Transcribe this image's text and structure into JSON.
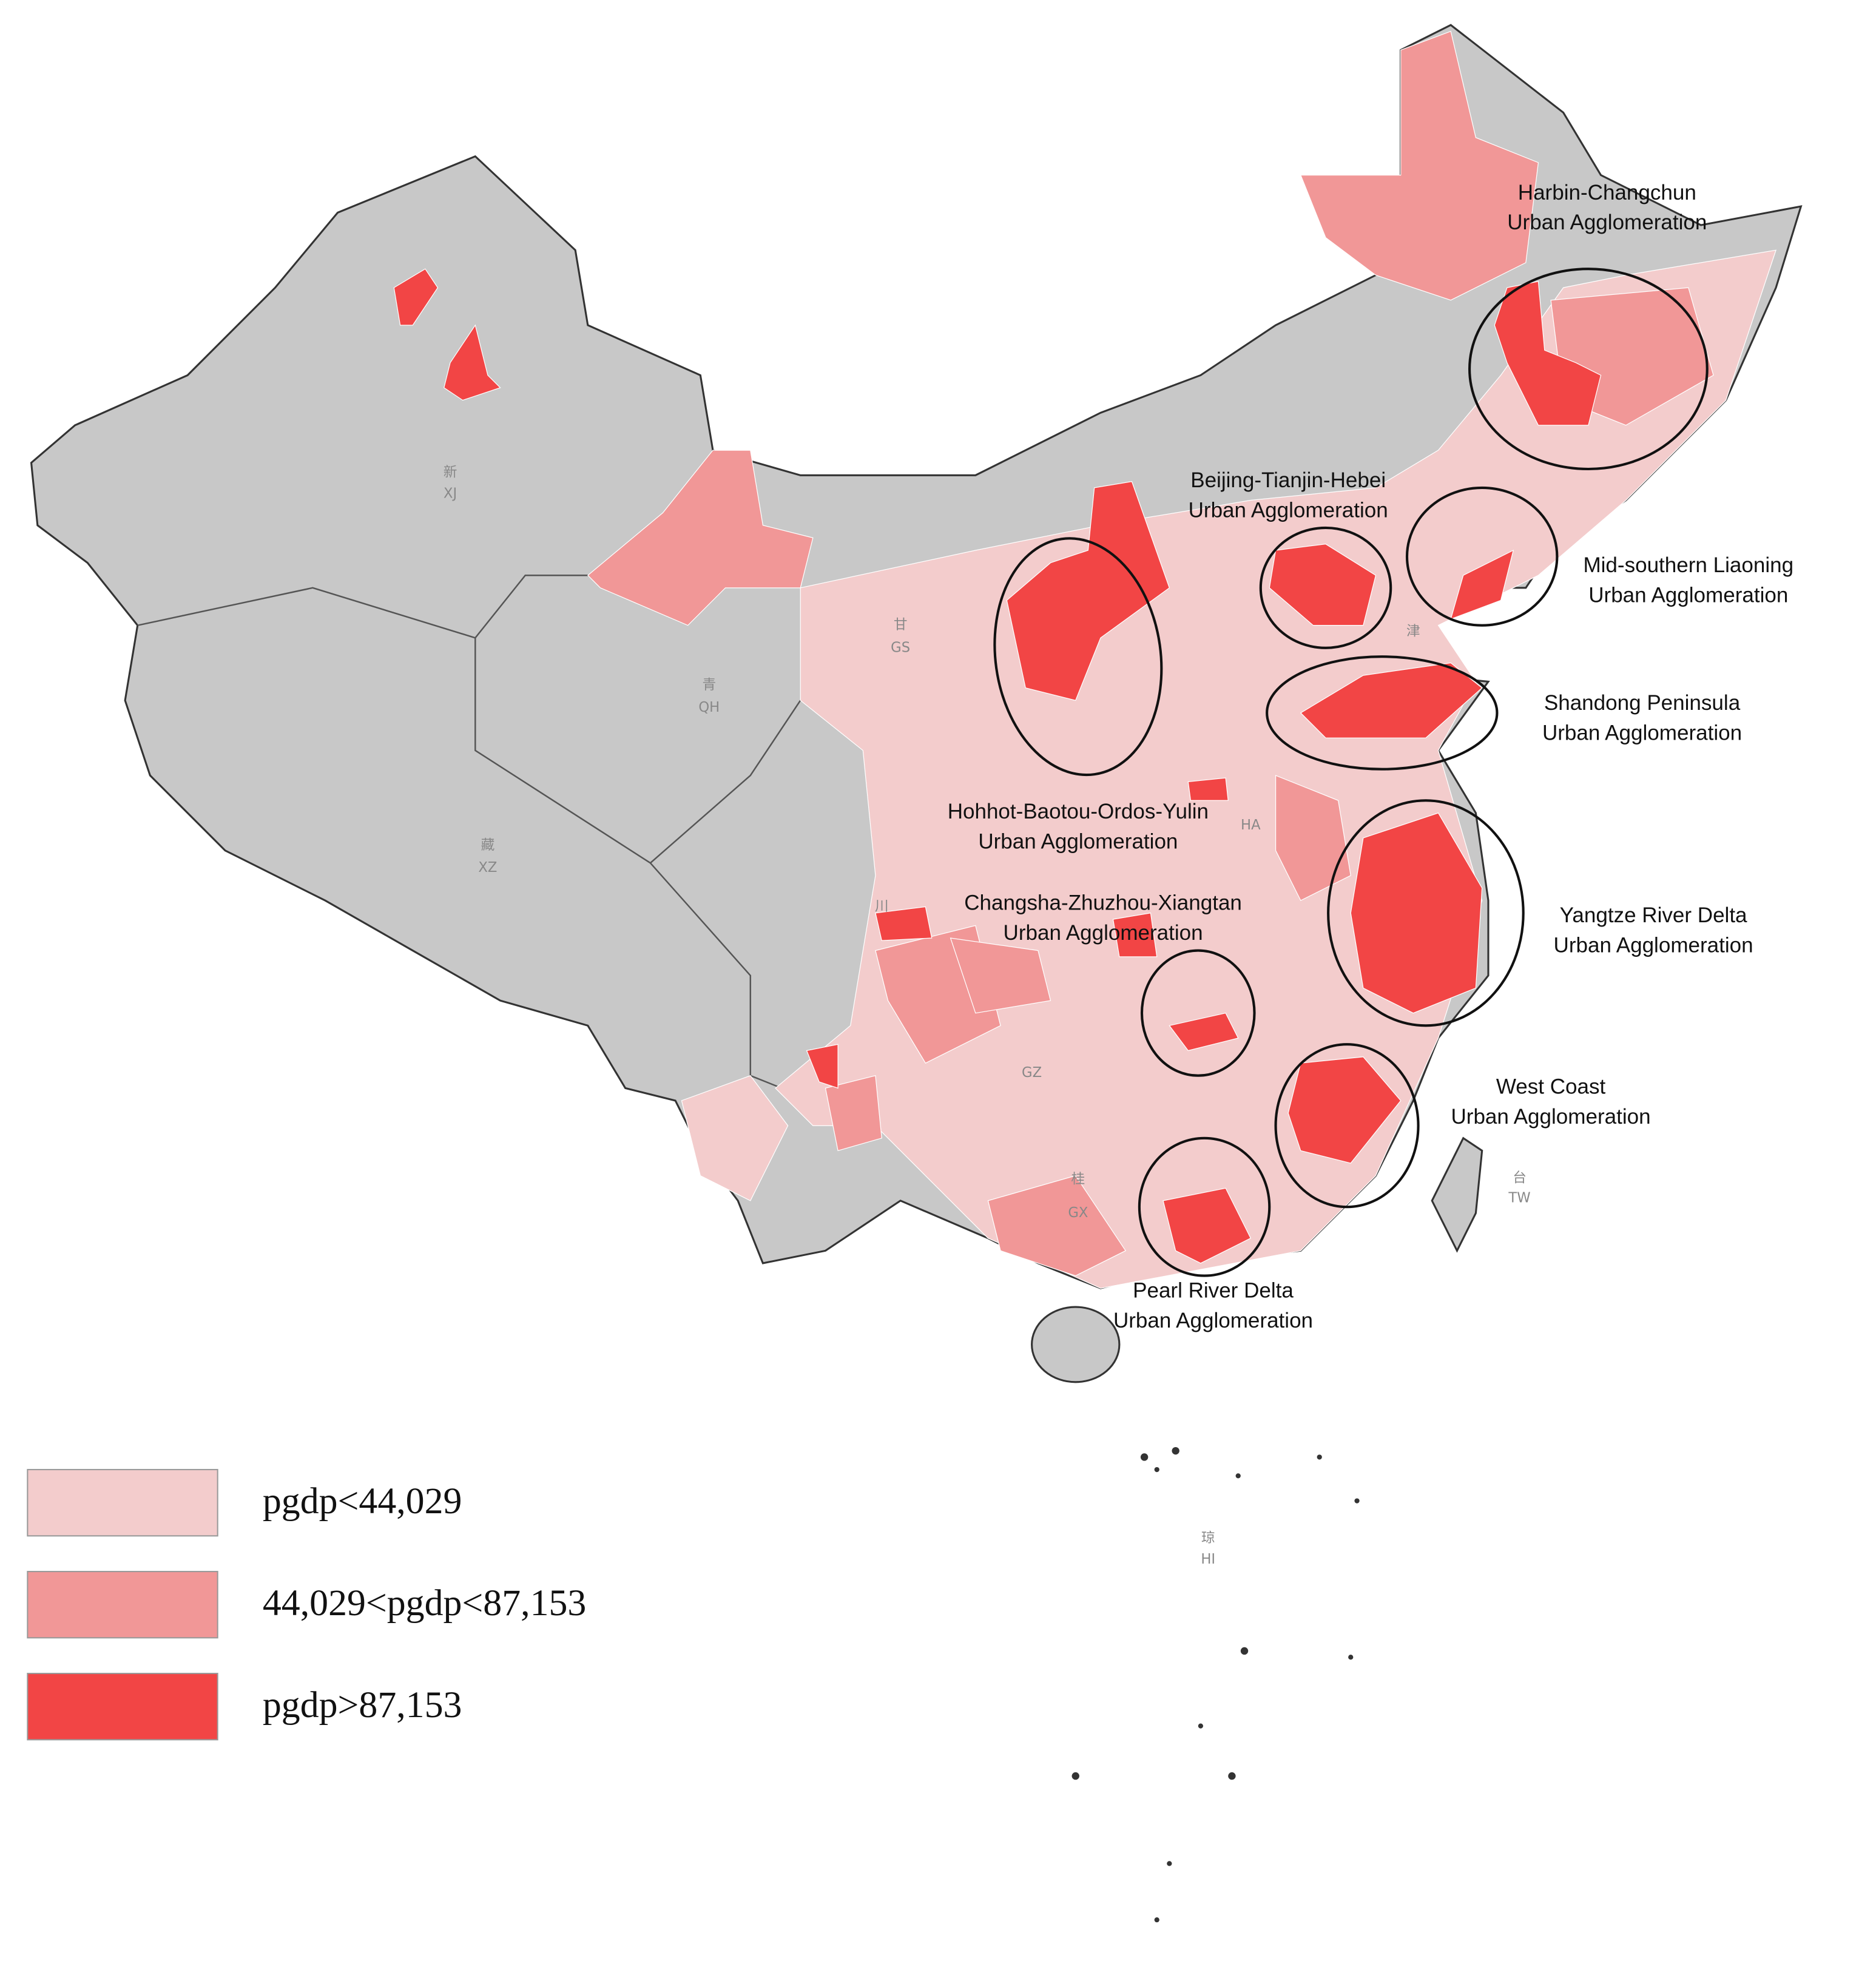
{
  "legend": [
    {
      "label": "pgdp<44,029",
      "color": "#f3cccc"
    },
    {
      "label": "44,029<pgdp<87,153",
      "color": "#f19797"
    },
    {
      "label": "pgdp>87,153",
      "color": "#f24545"
    }
  ],
  "agglomerations": [
    {
      "lines": [
        "Harbin-Changchun",
        "Urban Agglomeration"
      ]
    },
    {
      "lines": [
        "Beijing-Tianjin-Hebei",
        "Urban Agglomeration"
      ]
    },
    {
      "lines": [
        "Mid-southern Liaoning",
        "Urban Agglomeration"
      ]
    },
    {
      "lines": [
        "Shandong Peninsula",
        "Urban Agglomeration"
      ]
    },
    {
      "lines": [
        "Hohhot-Baotou-Ordos-Yulin",
        "Urban Agglomeration"
      ]
    },
    {
      "lines": [
        "Yangtze River Delta",
        "Urban Agglomeration"
      ]
    },
    {
      "lines": [
        "Changsha-Zhuzhou-Xiangtan",
        "Urban Agglomeration"
      ]
    },
    {
      "lines": [
        "West Coast",
        "Urban Agglomeration"
      ]
    },
    {
      "lines": [
        "Pearl River Delta",
        "Urban Agglomeration"
      ]
    }
  ],
  "province_labels": [
    "新",
    "XJ",
    "青",
    "QH",
    "藏",
    "XZ",
    "甘",
    "GS",
    "川",
    "桂",
    "GX",
    "GZ",
    "HA",
    "津",
    "台",
    "TW",
    "琼",
    "HI"
  ]
}
